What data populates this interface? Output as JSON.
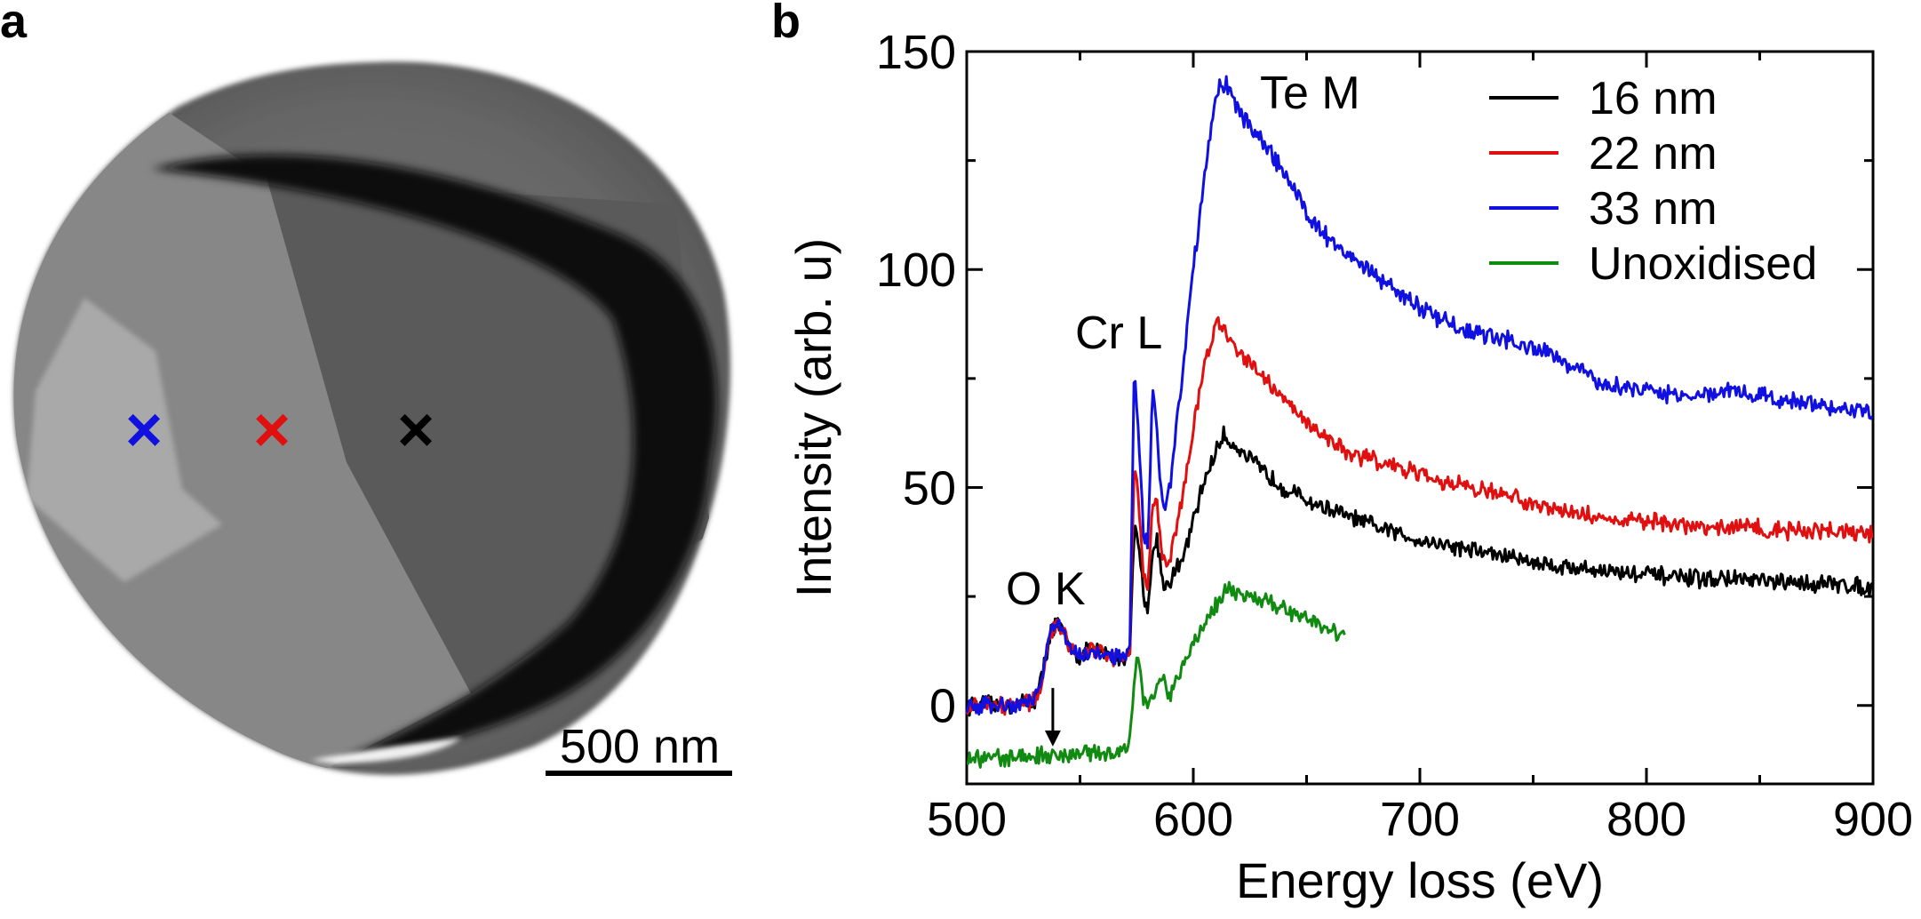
{
  "panel_a": {
    "label": "a",
    "scale_bar_text": "500 nm",
    "markers": [
      {
        "symbol": "×",
        "color": "#1010e0"
      },
      {
        "symbol": "×",
        "color": "#e01010"
      },
      {
        "symbol": "×",
        "color": "#000000"
      }
    ]
  },
  "panel_b": {
    "label": "b"
  },
  "chart_data": {
    "type": "line",
    "title": "",
    "xlabel": "Energy loss (eV)",
    "ylabel": "Intensity (arb. u)",
    "xlim": [
      500,
      900
    ],
    "ylim": [
      -18,
      150
    ],
    "xticks": [
      500,
      600,
      700,
      800,
      900
    ],
    "yticks": [
      0,
      50,
      100,
      150
    ],
    "legend_position": "top-right",
    "grid": false,
    "annotations": [
      {
        "text": "Te M",
        "x": 628,
        "y": 140
      },
      {
        "text": "Cr L",
        "x": 580,
        "y": 86
      },
      {
        "text": "O K",
        "x": 543,
        "y": 24
      }
    ],
    "arrow": {
      "x": 538,
      "y_from": 4,
      "y_to": -9
    },
    "series": [
      {
        "name": "16 nm",
        "color": "#000000",
        "x": [
          500,
          520,
          530,
          533,
          537,
          540,
          545,
          550,
          555,
          560,
          565,
          570,
          572,
          574,
          576,
          578,
          580,
          582,
          584,
          586,
          588,
          590,
          595,
          600,
          605,
          610,
          613,
          615,
          620,
          630,
          640,
          650,
          660,
          670,
          680,
          700,
          720,
          740,
          760,
          780,
          800,
          820,
          840,
          860,
          880,
          900
        ],
        "y": [
          0,
          0,
          1,
          6,
          17,
          19,
          14,
          11,
          13,
          12,
          11,
          11,
          13,
          42,
          37,
          25,
          23,
          34,
          39,
          30,
          27,
          29,
          33,
          42,
          52,
          58,
          62,
          61,
          59,
          54,
          50,
          47,
          45,
          43,
          41,
          38,
          36,
          34,
          32,
          31,
          30,
          29,
          29,
          28,
          28,
          27
        ]
      },
      {
        "name": "22 nm",
        "color": "#e01010",
        "x": [
          500,
          520,
          530,
          533,
          537,
          540,
          545,
          550,
          555,
          560,
          565,
          570,
          572,
          574,
          576,
          578,
          580,
          582,
          584,
          586,
          588,
          590,
          595,
          600,
          605,
          610,
          613,
          615,
          620,
          630,
          640,
          650,
          660,
          670,
          680,
          700,
          720,
          740,
          760,
          780,
          800,
          820,
          840,
          860,
          880,
          900
        ],
        "y": [
          0,
          0,
          1,
          6,
          17,
          19,
          14,
          11,
          13,
          12,
          11,
          11,
          14,
          56,
          46,
          30,
          28,
          46,
          48,
          35,
          32,
          35,
          47,
          63,
          78,
          88,
          87,
          84,
          82,
          76,
          70,
          65,
          61,
          58,
          56,
          53,
          50,
          48,
          45,
          43,
          42,
          41,
          41,
          40,
          40,
          39
        ]
      },
      {
        "name": "33 nm",
        "color": "#1010e0",
        "x": [
          500,
          520,
          530,
          533,
          537,
          540,
          545,
          550,
          555,
          560,
          565,
          570,
          572,
          574,
          576,
          578,
          580,
          582,
          584,
          586,
          588,
          590,
          595,
          600,
          605,
          610,
          613,
          615,
          620,
          630,
          640,
          650,
          660,
          670,
          680,
          700,
          720,
          740,
          760,
          780,
          800,
          820,
          840,
          860,
          880,
          900
        ],
        "y": [
          0,
          0,
          1,
          6,
          17,
          19,
          14,
          11,
          13,
          12,
          11,
          11,
          15,
          79,
          60,
          40,
          37,
          73,
          62,
          48,
          45,
          52,
          75,
          100,
          122,
          140,
          143,
          142,
          136,
          130,
          122,
          113,
          107,
          102,
          99,
          91,
          86,
          84,
          80,
          74,
          72,
          71,
          72,
          70,
          69,
          67
        ]
      },
      {
        "name": "Unoxidised",
        "color": "#108a10",
        "x": [
          500,
          520,
          540,
          560,
          570,
          572,
          574,
          576,
          578,
          580,
          582,
          584,
          586,
          588,
          590,
          595,
          600,
          605,
          610,
          613,
          615,
          620,
          630,
          640,
          650,
          660,
          667
        ],
        "y": [
          -12,
          -12,
          -11,
          -11,
          -11,
          -8,
          8,
          11,
          2,
          0,
          2,
          5,
          6,
          4,
          3,
          9,
          14,
          19,
          23,
          26,
          27,
          26,
          24,
          22,
          20,
          18,
          15
        ]
      }
    ]
  }
}
